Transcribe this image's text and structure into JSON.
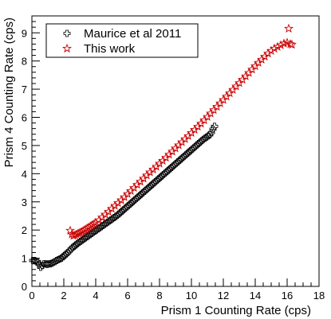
{
  "chart_data": {
    "type": "scatter",
    "title": "",
    "xlabel": "Prism 1 Counting Rate (cps)",
    "ylabel": "Prism 4 Counting Rate (cps)",
    "xlim": [
      0,
      18
    ],
    "ylim": [
      0,
      9.6
    ],
    "xticks": [
      0,
      2,
      4,
      6,
      8,
      10,
      12,
      14,
      16,
      18
    ],
    "yticks": [
      0,
      1,
      2,
      3,
      4,
      5,
      6,
      7,
      8,
      9
    ],
    "grid": false,
    "legend_position": "top-left",
    "series": [
      {
        "name": "Maurice et al 2011",
        "marker": "open-cross",
        "color": "#000000",
        "x": [
          0.05,
          0.15,
          0.25,
          0.35,
          0.45,
          0.55,
          0.65,
          0.75,
          0.85,
          0.95,
          1.05,
          1.15,
          1.25,
          1.35,
          1.45,
          1.55,
          1.65,
          1.75,
          1.85,
          1.95,
          2.05,
          2.15,
          2.25,
          2.35,
          2.45,
          2.55,
          2.65,
          2.75,
          2.85,
          2.95,
          3.05,
          3.15,
          3.25,
          3.35,
          3.45,
          3.55,
          3.65,
          3.75,
          3.85,
          3.95,
          4.05,
          4.15,
          4.25,
          4.35,
          4.45,
          4.55,
          4.65,
          4.75,
          4.85,
          4.95,
          5.05,
          5.15,
          5.25,
          5.35,
          5.45,
          5.55,
          5.65,
          5.75,
          5.85,
          5.95,
          6.05,
          6.15,
          6.25,
          6.35,
          6.45,
          6.55,
          6.65,
          6.75,
          6.85,
          6.95,
          7.05,
          7.15,
          7.25,
          7.35,
          7.45,
          7.55,
          7.65,
          7.75,
          7.85,
          7.95,
          8.05,
          8.15,
          8.25,
          8.35,
          8.45,
          8.55,
          8.65,
          8.75,
          8.85,
          8.95,
          9.05,
          9.15,
          9.25,
          9.35,
          9.45,
          9.55,
          9.65,
          9.75,
          9.85,
          9.95,
          10.05,
          10.15,
          10.25,
          10.35,
          10.45,
          10.55,
          10.65,
          10.75,
          10.85,
          10.95,
          11.05,
          11.15,
          11.25,
          11.35,
          11.45
        ],
        "y": [
          0.92,
          0.92,
          0.9,
          0.88,
          0.78,
          0.68,
          0.74,
          0.8,
          0.8,
          0.78,
          0.8,
          0.8,
          0.82,
          0.85,
          0.88,
          0.92,
          0.95,
          0.97,
          1.0,
          1.05,
          1.1,
          1.15,
          1.2,
          1.26,
          1.32,
          1.38,
          1.42,
          1.47,
          1.52,
          1.56,
          1.6,
          1.64,
          1.68,
          1.72,
          1.76,
          1.8,
          1.84,
          1.88,
          1.92,
          1.96,
          2.0,
          2.04,
          2.08,
          2.12,
          2.16,
          2.2,
          2.24,
          2.28,
          2.32,
          2.36,
          2.4,
          2.44,
          2.48,
          2.52,
          2.57,
          2.62,
          2.67,
          2.72,
          2.77,
          2.82,
          2.87,
          2.92,
          2.97,
          3.02,
          3.07,
          3.12,
          3.17,
          3.22,
          3.27,
          3.32,
          3.37,
          3.42,
          3.47,
          3.52,
          3.57,
          3.62,
          3.67,
          3.72,
          3.77,
          3.82,
          3.87,
          3.92,
          3.97,
          4.02,
          4.07,
          4.12,
          4.17,
          4.22,
          4.27,
          4.32,
          4.37,
          4.42,
          4.47,
          4.52,
          4.57,
          4.62,
          4.67,
          4.72,
          4.77,
          4.82,
          4.87,
          4.92,
          4.97,
          5.02,
          5.07,
          5.12,
          5.17,
          5.22,
          5.26,
          5.3,
          5.34,
          5.38,
          5.46,
          5.58,
          5.68
        ]
      },
      {
        "name": "This work",
        "marker": "open-star",
        "color": "#cc0000",
        "x": [
          2.4,
          2.5,
          2.6,
          2.7,
          2.8,
          2.9,
          3.0,
          3.1,
          3.2,
          3.3,
          3.4,
          3.5,
          3.6,
          3.7,
          3.8,
          3.9,
          4.0,
          4.2,
          4.4,
          4.6,
          4.8,
          5.0,
          5.2,
          5.4,
          5.6,
          5.8,
          6.0,
          6.2,
          6.4,
          6.6,
          6.8,
          7.0,
          7.2,
          7.4,
          7.6,
          7.8,
          8.0,
          8.2,
          8.4,
          8.6,
          8.8,
          9.0,
          9.2,
          9.4,
          9.6,
          9.8,
          10.0,
          10.2,
          10.4,
          10.6,
          10.8,
          11.0,
          11.2,
          11.4,
          11.6,
          11.8,
          12.0,
          12.2,
          12.4,
          12.6,
          12.8,
          13.0,
          13.2,
          13.4,
          13.6,
          13.8,
          14.0,
          14.2,
          14.4,
          14.6,
          14.8,
          15.0,
          15.2,
          15.4,
          15.6,
          15.8,
          16.0,
          16.2,
          16.3,
          16.1
        ],
        "y": [
          1.98,
          1.85,
          1.8,
          1.82,
          1.85,
          1.88,
          1.9,
          1.93,
          1.96,
          2.0,
          2.03,
          2.07,
          2.1,
          2.14,
          2.18,
          2.22,
          2.26,
          2.35,
          2.45,
          2.55,
          2.65,
          2.76,
          2.86,
          2.96,
          3.06,
          3.17,
          3.28,
          3.39,
          3.5,
          3.61,
          3.72,
          3.83,
          3.94,
          4.05,
          4.15,
          4.25,
          4.36,
          4.46,
          4.57,
          4.68,
          4.79,
          4.9,
          5.01,
          5.12,
          5.23,
          5.34,
          5.45,
          5.56,
          5.67,
          5.78,
          5.9,
          6.02,
          6.14,
          6.26,
          6.38,
          6.5,
          6.62,
          6.74,
          6.86,
          6.98,
          7.1,
          7.22,
          7.34,
          7.46,
          7.58,
          7.7,
          7.82,
          7.94,
          8.05,
          8.16,
          8.27,
          8.36,
          8.44,
          8.5,
          8.56,
          8.62,
          8.65,
          8.6,
          8.58,
          9.15
        ]
      }
    ]
  }
}
